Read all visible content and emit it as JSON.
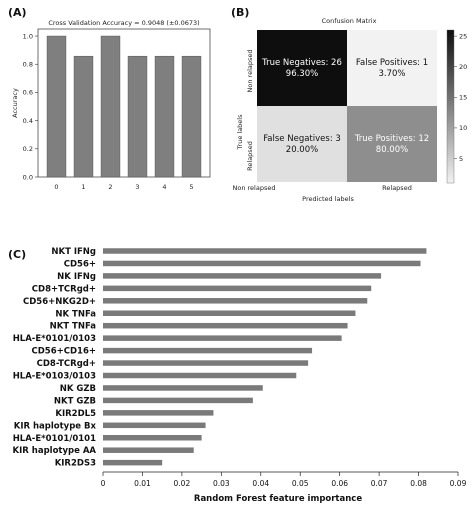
{
  "panels": {
    "a_label": "(A)",
    "b_label": "(B)",
    "c_label": "(C)"
  },
  "colors": {
    "bar_a": "#7f7f7f",
    "bar_c": "#7a7a7a",
    "cm_dark": "#0e0e0e",
    "cm_light": "#f2f2f2",
    "cm_mid": "#8a8a8a"
  },
  "chart_data": [
    {
      "type": "bar",
      "title": "Cross Validation Accuracy = 0.9048 (±0.0673)",
      "xlabel": "",
      "ylabel": "Accuracy",
      "categories": [
        "0",
        "1",
        "2",
        "3",
        "4",
        "5"
      ],
      "values": [
        1.0,
        0.857,
        1.0,
        0.857,
        0.857,
        0.857
      ],
      "ylim": [
        0,
        1.05
      ],
      "yticks": [
        "0.0",
        "0.2",
        "0.4",
        "0.6",
        "0.8",
        "1.0"
      ],
      "grid": false
    },
    {
      "type": "heatmap",
      "title": "Confusion Matrix",
      "xlabel": "Predicted labels",
      "ylabel": "True labels",
      "x_categories": [
        "Non relapsed",
        "Relapsed"
      ],
      "y_categories": [
        "Non relapsed",
        "Relapsed"
      ],
      "cells": [
        [
          {
            "label": "True Negatives: 26",
            "pct": "96.30%",
            "value": 26
          },
          {
            "label": "False Positives: 1",
            "pct": "3.70%",
            "value": 1
          }
        ],
        [
          {
            "label": "False Negatives: 3",
            "pct": "20.00%",
            "value": 3
          },
          {
            "label": "True Positives: 12",
            "pct": "80.00%",
            "value": 12
          }
        ]
      ],
      "colorbar_ticks": [
        "5",
        "10",
        "15",
        "20",
        "25"
      ],
      "colorbar_range": [
        1,
        26
      ]
    },
    {
      "type": "bar",
      "orientation": "horizontal",
      "title": "",
      "xlabel": "Random Forest feature importance",
      "ylabel": "",
      "categories": [
        "NKT IFNg",
        "CD56+",
        "NK IFNg",
        "CD8+TCRgd+",
        "CD56+NKG2D+",
        "NK TNFa",
        "NKT TNFa",
        "HLA-E*0101/0103",
        "CD56+CD16+",
        "CD8-TCRgd+",
        "HLA-E*0103/0103",
        "NK GZB",
        "NKT GZB",
        "KIR2DL5",
        "KIR haplotype Bx",
        "HLA-E*0101/0101",
        "KIR haplotype AA",
        "KIR2DS3"
      ],
      "values": [
        0.082,
        0.0805,
        0.0705,
        0.068,
        0.067,
        0.064,
        0.062,
        0.0605,
        0.053,
        0.052,
        0.049,
        0.0405,
        0.038,
        0.028,
        0.026,
        0.025,
        0.023,
        0.015
      ],
      "xlim": [
        0,
        0.09
      ],
      "xticks": [
        "0",
        "0.01",
        "0.02",
        "0.03",
        "0.04",
        "0.05",
        "0.06",
        "0.07",
        "0.08",
        "0.09"
      ],
      "grid": false
    }
  ]
}
